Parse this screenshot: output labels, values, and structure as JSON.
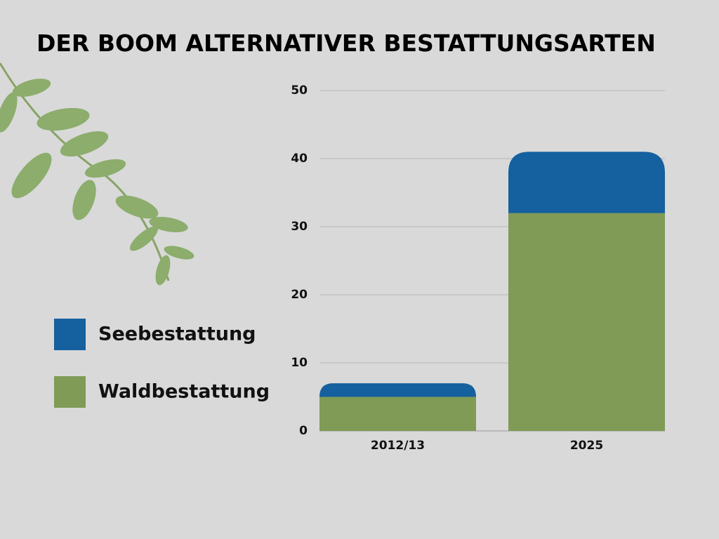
{
  "chart_data": {
    "type": "stacked-bar",
    "title": "DER BOOM ALTERNATIVER BESTATTUNGSARTEN",
    "categories": [
      "2012/13",
      "2025"
    ],
    "series": [
      {
        "name": "Seebestattung",
        "color": "#15609f",
        "values": [
          2,
          9
        ]
      },
      {
        "name": "Waldbestattung",
        "color": "#7f9b56",
        "values": [
          5,
          32
        ]
      }
    ],
    "ylim": [
      0,
      50
    ],
    "yticks": [
      0,
      10,
      20,
      30,
      40,
      50
    ],
    "grid": true,
    "legend": "left"
  }
}
